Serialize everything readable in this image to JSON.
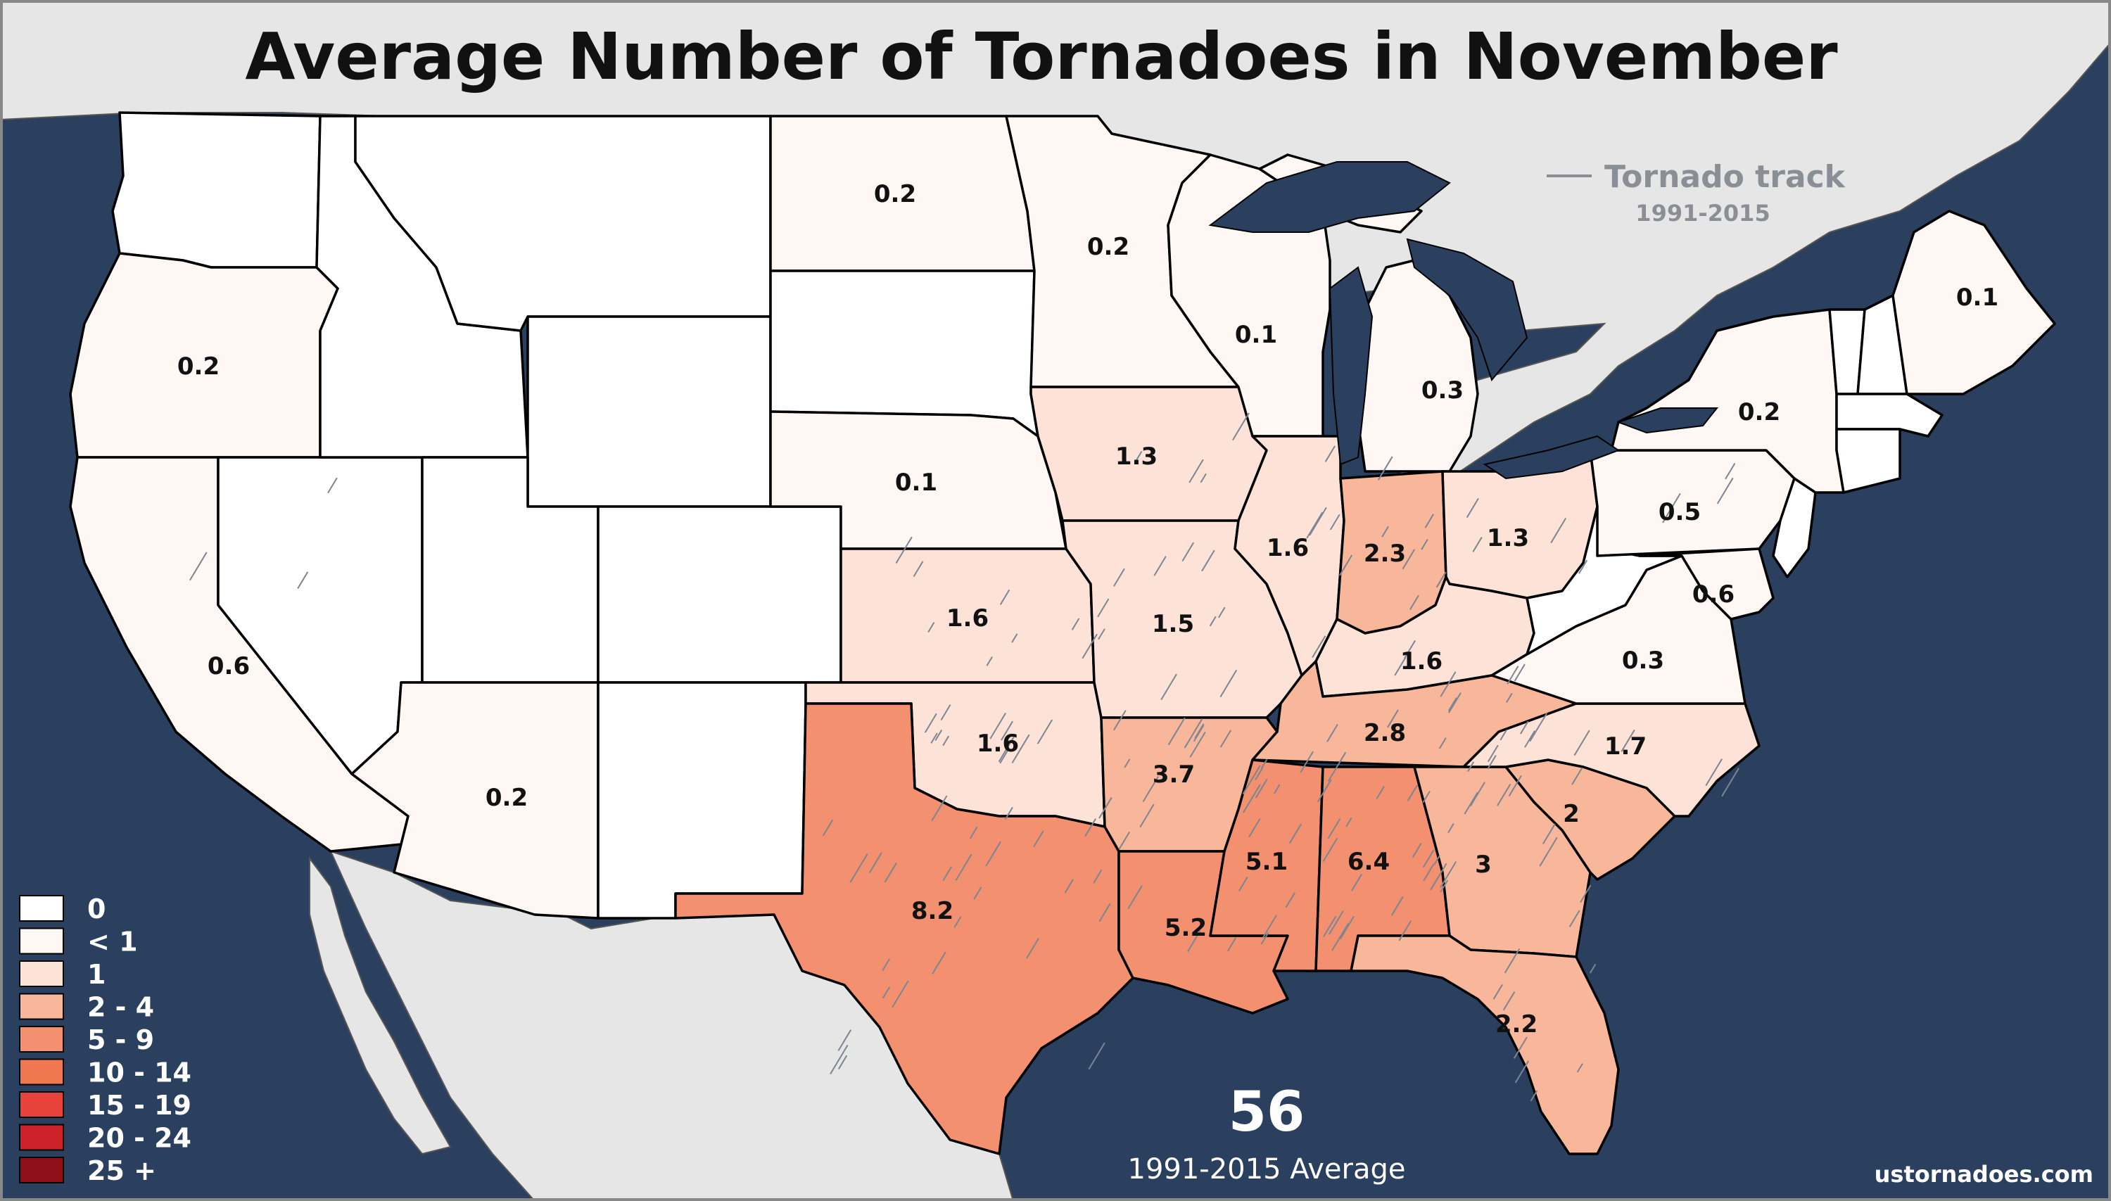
{
  "title": "Average Number of Tornadoes in November",
  "track_legend": {
    "label": "Tornado track",
    "years": "1991-2015"
  },
  "summary": {
    "total": "56",
    "caption": "1991-2015 Average"
  },
  "credit": "ustornadoes.com",
  "colors": {
    "water": "#2b3f5f",
    "land_outside": "#e6e6e6",
    "c0": "#ffffff",
    "c_lt1": "#fff7f3",
    "c1": "#fde3d7",
    "c2_4": "#f8b79a",
    "c5_9": "#f39070",
    "c10_14": "#f07850",
    "c15_19": "#e8433a",
    "c20_24": "#cc2229",
    "c25p": "#8f0f18"
  },
  "legend": [
    {
      "label": "0",
      "color": "#ffffff"
    },
    {
      "label": "< 1",
      "color": "#fff7f3"
    },
    {
      "label": "1",
      "color": "#fde3d7"
    },
    {
      "label": "2 - 4",
      "color": "#f8b79a"
    },
    {
      "label": "5 - 9",
      "color": "#f39070"
    },
    {
      "label": "10 - 14",
      "color": "#f07850"
    },
    {
      "label": "15 - 19",
      "color": "#e8433a"
    },
    {
      "label": "20 - 24",
      "color": "#cc2229"
    },
    {
      "label": "25 +",
      "color": "#8f0f18"
    }
  ],
  "states": {
    "WA": "",
    "OR": "0.2",
    "CA": "0.6",
    "NV": "",
    "ID": "",
    "MT": "",
    "WY": "",
    "UT": "",
    "CO": "",
    "AZ": "0.2",
    "NM": "",
    "ND": "0.2",
    "SD": "",
    "NE": "0.1",
    "KS": "1.6",
    "OK": "1.6",
    "TX": "8.2",
    "MN": "0.2",
    "IA": "1.3",
    "MO": "1.5",
    "AR": "3.7",
    "LA": "5.2",
    "WI": "0.1",
    "IL": "1.6",
    "MI": "0.3",
    "IN": "2.3",
    "OH": "1.3",
    "KY": "1.6",
    "TN": "2.8",
    "MS": "5.1",
    "AL": "6.4",
    "GA": "3",
    "FL": "2.2",
    "SC": "2",
    "NC": "1.7",
    "VA": "0.3",
    "WV": "",
    "PA": "0.5",
    "NY": "0.2",
    "MD": "0.6",
    "ME": "0.1",
    "VT": "",
    "NH": "",
    "MA": "",
    "CT": "",
    "NJ": ""
  }
}
